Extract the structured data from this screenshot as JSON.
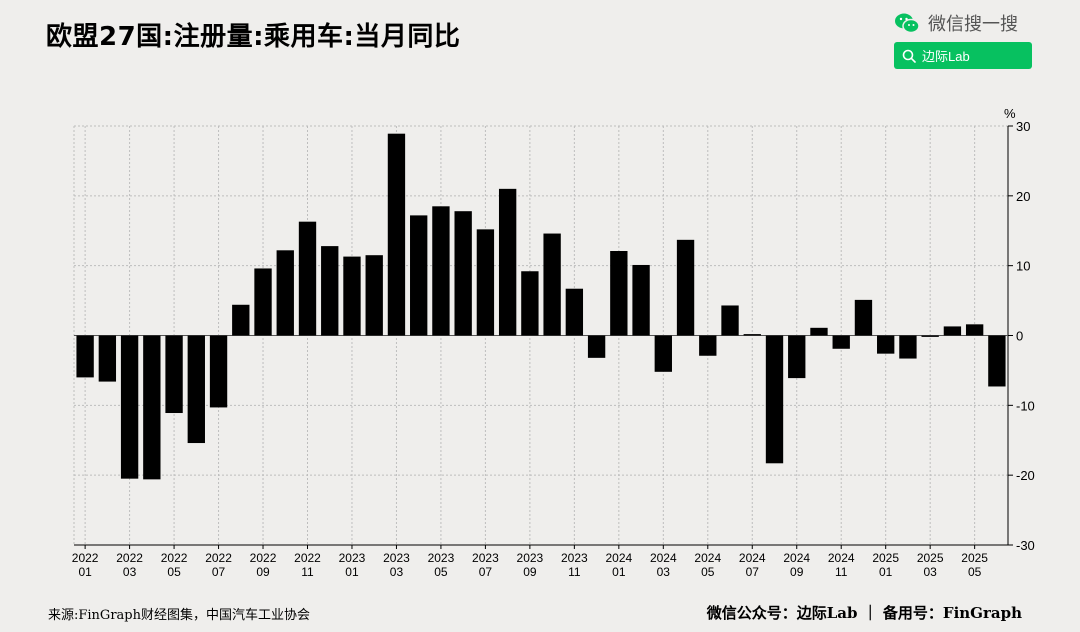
{
  "title": "欧盟27国:注册量:乘用车:当月同比",
  "wechat": {
    "search_text": "微信搜一搜",
    "account": "边际Lab",
    "brand_color": "#07c160"
  },
  "footer": {
    "source": "来源:FinGraph财经图集，中国汽车工业协会",
    "credit": "微信公众号：边际Lab ｜ 备用号：FinGraph"
  },
  "chart_data": {
    "type": "bar",
    "unit": "%",
    "ylim": [
      -30,
      30
    ],
    "yticks": [
      30,
      20,
      10,
      0,
      -10,
      -20,
      -30
    ],
    "grid": true,
    "bar_color": "#000000",
    "categories": [
      "2022-01",
      "2022-02",
      "2022-03",
      "2022-04",
      "2022-05",
      "2022-06",
      "2022-07",
      "2022-08",
      "2022-09",
      "2022-10",
      "2022-11",
      "2022-12",
      "2023-01",
      "2023-02",
      "2023-03",
      "2023-04",
      "2023-05",
      "2023-06",
      "2023-07",
      "2023-08",
      "2023-09",
      "2023-10",
      "2023-11",
      "2023-12",
      "2024-01",
      "2024-02",
      "2024-03",
      "2024-04",
      "2024-05",
      "2024-06",
      "2024-07",
      "2024-08",
      "2024-09",
      "2024-10",
      "2024-11",
      "2024-12",
      "2025-01",
      "2025-02",
      "2025-03",
      "2025-04",
      "2025-05",
      "2025-06"
    ],
    "values": [
      -6.0,
      -6.6,
      -20.5,
      -20.6,
      -11.1,
      -15.4,
      -10.3,
      4.4,
      9.6,
      12.2,
      16.3,
      12.8,
      11.3,
      11.5,
      28.9,
      17.2,
      18.5,
      17.8,
      15.2,
      21.0,
      9.2,
      14.6,
      6.7,
      -3.2,
      12.1,
      10.1,
      -5.2,
      13.7,
      -2.9,
      4.3,
      0.2,
      -18.3,
      -6.1,
      1.1,
      -1.9,
      5.1,
      -2.6,
      -3.3,
      -0.2,
      1.3,
      1.6,
      -7.3
    ],
    "xtick_labels": [
      {
        "year": "2022",
        "month": "01"
      },
      {
        "year": "2022",
        "month": "03"
      },
      {
        "year": "2022",
        "month": "05"
      },
      {
        "year": "2022",
        "month": "07"
      },
      {
        "year": "2022",
        "month": "09"
      },
      {
        "year": "2022",
        "month": "11"
      },
      {
        "year": "2023",
        "month": "01"
      },
      {
        "year": "2023",
        "month": "03"
      },
      {
        "year": "2023",
        "month": "05"
      },
      {
        "year": "2023",
        "month": "07"
      },
      {
        "year": "2023",
        "month": "09"
      },
      {
        "year": "2023",
        "month": "11"
      },
      {
        "year": "2024",
        "month": "01"
      },
      {
        "year": "2024",
        "month": "03"
      },
      {
        "year": "2024",
        "month": "05"
      },
      {
        "year": "2024",
        "month": "07"
      },
      {
        "year": "2024",
        "month": "09"
      },
      {
        "year": "2024",
        "month": "11"
      },
      {
        "year": "2025",
        "month": "01"
      },
      {
        "year": "2025",
        "month": "03"
      },
      {
        "year": "2025",
        "month": "05"
      }
    ]
  }
}
